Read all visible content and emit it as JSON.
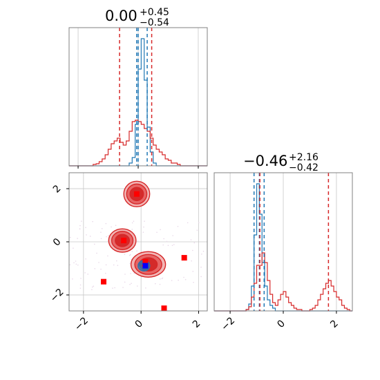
{
  "colors": {
    "blue": "#1f77b4",
    "red": "#d62728",
    "red_fill_outer": "#f2b5b5",
    "red_fill_mid": "#e66565",
    "red_fill_inner": "#d42a2a",
    "frame": "#808080",
    "grid": "#c8c8c8",
    "blue_marker": "#0000ff",
    "red_marker": "#ff0000"
  },
  "chart_data": {
    "type": "corner",
    "parameters": [
      {
        "index": 0,
        "title": {
          "median": "0.00",
          "plus": "+0.45",
          "minus": "−0.54"
        },
        "quantiles": {
          "blue": [
            -0.05,
            0.0,
            0.3
          ],
          "red": [
            -0.62,
            0.45
          ]
        },
        "hist_blue": {
          "bins": [
            -2.3,
            -2.2,
            -2.1,
            -2.0,
            -1.9,
            -1.8,
            -1.7,
            -1.6,
            -1.5,
            -1.4,
            -1.3,
            -1.2,
            -1.1,
            -1.0,
            -0.9,
            -0.8,
            -0.7,
            -0.6,
            -0.5,
            -0.4,
            -0.3,
            -0.2,
            -0.1,
            0.0,
            0.1,
            0.2,
            0.3,
            0.4,
            0.5,
            0.6,
            0.7,
            0.8,
            0.9,
            1.0,
            1.1,
            1.2,
            1.3,
            1.4,
            1.5,
            1.6,
            1.7,
            1.8,
            1.9,
            2.0,
            2.1,
            2.2,
            2.3
          ],
          "counts": [
            0,
            0,
            0,
            0,
            0,
            0,
            0,
            0,
            0,
            0,
            0,
            0,
            0,
            0,
            0,
            0,
            0,
            0,
            0,
            0,
            0.02,
            0.06,
            0.3,
            0.7,
            0.92,
            0.62,
            0.28,
            0.1,
            0.02,
            0,
            0,
            0,
            0,
            0,
            0,
            0,
            0,
            0,
            0,
            0,
            0,
            0,
            0,
            0,
            0,
            0
          ]
        },
        "hist_red": {
          "bins": [
            -2.3,
            -2.2,
            -2.1,
            -2.0,
            -1.9,
            -1.8,
            -1.7,
            -1.6,
            -1.5,
            -1.4,
            -1.3,
            -1.2,
            -1.1,
            -1.0,
            -0.9,
            -0.8,
            -0.7,
            -0.6,
            -0.5,
            -0.4,
            -0.3,
            -0.2,
            -0.1,
            0.0,
            0.1,
            0.2,
            0.3,
            0.4,
            0.5,
            0.6,
            0.7,
            0.8,
            0.9,
            1.0,
            1.1,
            1.2,
            1.3,
            1.4,
            1.5,
            1.6,
            1.7,
            1.8,
            1.9,
            2.0,
            2.1,
            2.2,
            2.3
          ],
          "counts": [
            0,
            0,
            0,
            0,
            0,
            0,
            0,
            0,
            0.01,
            0.015,
            0.03,
            0.05,
            0.08,
            0.12,
            0.16,
            0.18,
            0.2,
            0.17,
            0.15,
            0.18,
            0.25,
            0.32,
            0.33,
            0.32,
            0.3,
            0.27,
            0.25,
            0.2,
            0.15,
            0.12,
            0.1,
            0.08,
            0.05,
            0.04,
            0.02,
            0.02,
            0.01,
            0,
            0,
            0,
            0,
            0,
            0,
            0,
            0,
            0
          ]
        },
        "xlim": [
          -2.3,
          2.3
        ],
        "ylim": [
          0,
          1.0
        ],
        "xticks": [
          -2,
          0,
          2
        ]
      },
      {
        "index": 1,
        "title": {
          "median": "−0.46",
          "plus": "+2.16",
          "minus": "−0.42"
        },
        "quantiles": {
          "blue": [
            -1.1,
            -0.9,
            -0.72
          ],
          "red": [
            -0.88,
            1.7
          ]
        },
        "hist_blue": {
          "bins": [
            -2.6,
            -2.5,
            -2.4,
            -2.3,
            -2.2,
            -2.1,
            -2.0,
            -1.9,
            -1.8,
            -1.7,
            -1.6,
            -1.5,
            -1.4,
            -1.3,
            -1.2,
            -1.1,
            -1.0,
            -0.9,
            -0.8,
            -0.7,
            -0.6,
            -0.5,
            -0.4,
            -0.3,
            -0.2,
            -0.1,
            0.0,
            0.1,
            0.2,
            0.3,
            0.4,
            0.5,
            0.6,
            0.7,
            0.8,
            0.9,
            1.0,
            1.1,
            1.2,
            1.3,
            1.4,
            1.5,
            1.6,
            1.7,
            1.8,
            1.9,
            2.0,
            2.1,
            2.2,
            2.3,
            2.4,
            2.5,
            2.6
          ],
          "counts": [
            0,
            0,
            0,
            0,
            0,
            0,
            0,
            0,
            0,
            0,
            0,
            0,
            0.01,
            0.05,
            0.18,
            0.55,
            0.92,
            0.7,
            0.35,
            0.18,
            0.08,
            0.04,
            0.02,
            0,
            0,
            0,
            0,
            0,
            0,
            0,
            0,
            0,
            0,
            0,
            0,
            0,
            0,
            0,
            0,
            0,
            0,
            0,
            0,
            0,
            0,
            0,
            0,
            0,
            0,
            0,
            0,
            0
          ]
        },
        "hist_red": {
          "bins": [
            -2.6,
            -2.5,
            -2.4,
            -2.3,
            -2.2,
            -2.1,
            -2.0,
            -1.9,
            -1.8,
            -1.7,
            -1.6,
            -1.5,
            -1.4,
            -1.3,
            -1.2,
            -1.1,
            -1.0,
            -0.9,
            -0.8,
            -0.7,
            -0.6,
            -0.5,
            -0.4,
            -0.3,
            -0.2,
            -0.1,
            0.0,
            0.1,
            0.2,
            0.3,
            0.4,
            0.5,
            0.6,
            0.7,
            0.8,
            0.9,
            1.0,
            1.1,
            1.2,
            1.3,
            1.4,
            1.5,
            1.6,
            1.7,
            1.8,
            1.9,
            2.0,
            2.1,
            2.2,
            2.3,
            2.4,
            2.5,
            2.6
          ],
          "counts": [
            0,
            0,
            0,
            0,
            0,
            0,
            0,
            0,
            0,
            0,
            0,
            0,
            0.01,
            0.03,
            0.1,
            0.2,
            0.33,
            0.33,
            0.42,
            0.35,
            0.22,
            0.12,
            0.06,
            0.04,
            0.08,
            0.12,
            0.14,
            0.1,
            0.06,
            0.04,
            0.02,
            0.01,
            0.01,
            0,
            0,
            0,
            0.01,
            0.02,
            0.04,
            0.08,
            0.12,
            0.16,
            0.2,
            0.22,
            0.18,
            0.14,
            0.1,
            0.08,
            0.04,
            0.02,
            0.01,
            0
          ]
        },
        "xlim": [
          -2.6,
          2.6
        ],
        "ylim": [
          0,
          1.0
        ],
        "xticks": [
          -2,
          0,
          2
        ]
      }
    ],
    "joint": {
      "xlim": [
        -2.5,
        2.3
      ],
      "ylim": [
        -2.6,
        2.6
      ],
      "xticks": [
        -2,
        0,
        2
      ],
      "yticks": [
        -2,
        0,
        2
      ],
      "red_blobs": [
        {
          "cx": -0.15,
          "cy": 1.8,
          "rx": 0.9,
          "ry": 0.6
        },
        {
          "cx": -0.65,
          "cy": 0.05,
          "rx": 0.95,
          "ry": 0.55
        },
        {
          "cx": 0.25,
          "cy": -0.85,
          "rx": 1.2,
          "ry": 0.6
        }
      ],
      "blue_blob": {
        "cx": 0.1,
        "cy": -0.9,
        "rx": 0.4,
        "ry": 0.35
      },
      "red_markers": [
        {
          "x": -0.15,
          "y": 1.8
        },
        {
          "x": -0.6,
          "y": 0.05
        },
        {
          "x": 0.15,
          "y": -0.75
        },
        {
          "x": 1.5,
          "y": -0.6
        },
        {
          "x": -1.3,
          "y": -1.5
        },
        {
          "x": 0.8,
          "y": -2.5
        }
      ],
      "blue_markers": [
        {
          "x": 0.15,
          "y": -0.9
        }
      ]
    }
  }
}
